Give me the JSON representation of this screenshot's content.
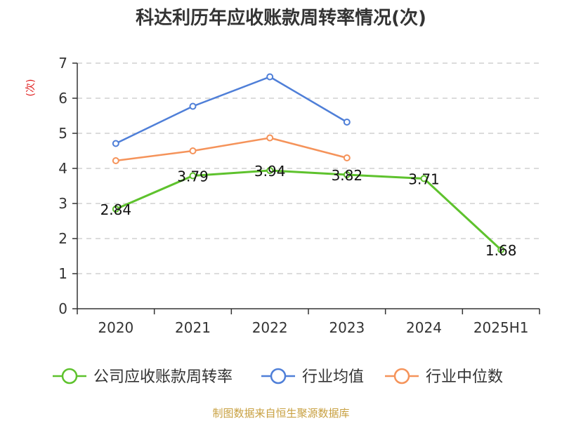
{
  "chart_data": {
    "type": "line",
    "title": "科达利历年应收账款周转率情况(次)",
    "ylabel": "(次)",
    "categories": [
      "2020",
      "2021",
      "2022",
      "2023",
      "2024",
      "2025H1"
    ],
    "ylim": [
      0,
      7
    ],
    "yticks": [
      "0",
      "1",
      "2",
      "3",
      "4",
      "5",
      "6",
      "7"
    ],
    "grid": true,
    "legend_position": "bottom",
    "series": [
      {
        "name": "公司应收账款周转率",
        "color": "#5ec22d",
        "values": [
          2.84,
          3.79,
          3.94,
          3.82,
          3.71,
          1.68
        ],
        "labels": [
          "2.84",
          "3.79",
          "3.94",
          "3.82",
          "3.71",
          "1.68"
        ]
      },
      {
        "name": "行业均值",
        "color": "#4f7fd8",
        "values": [
          4.71,
          5.77,
          6.61,
          5.32,
          null,
          null
        ]
      },
      {
        "name": "行业中位数",
        "color": "#f5935a",
        "values": [
          4.22,
          4.5,
          4.87,
          4.3,
          null,
          null
        ]
      }
    ]
  },
  "source": "制图数据来自恒生聚源数据库"
}
